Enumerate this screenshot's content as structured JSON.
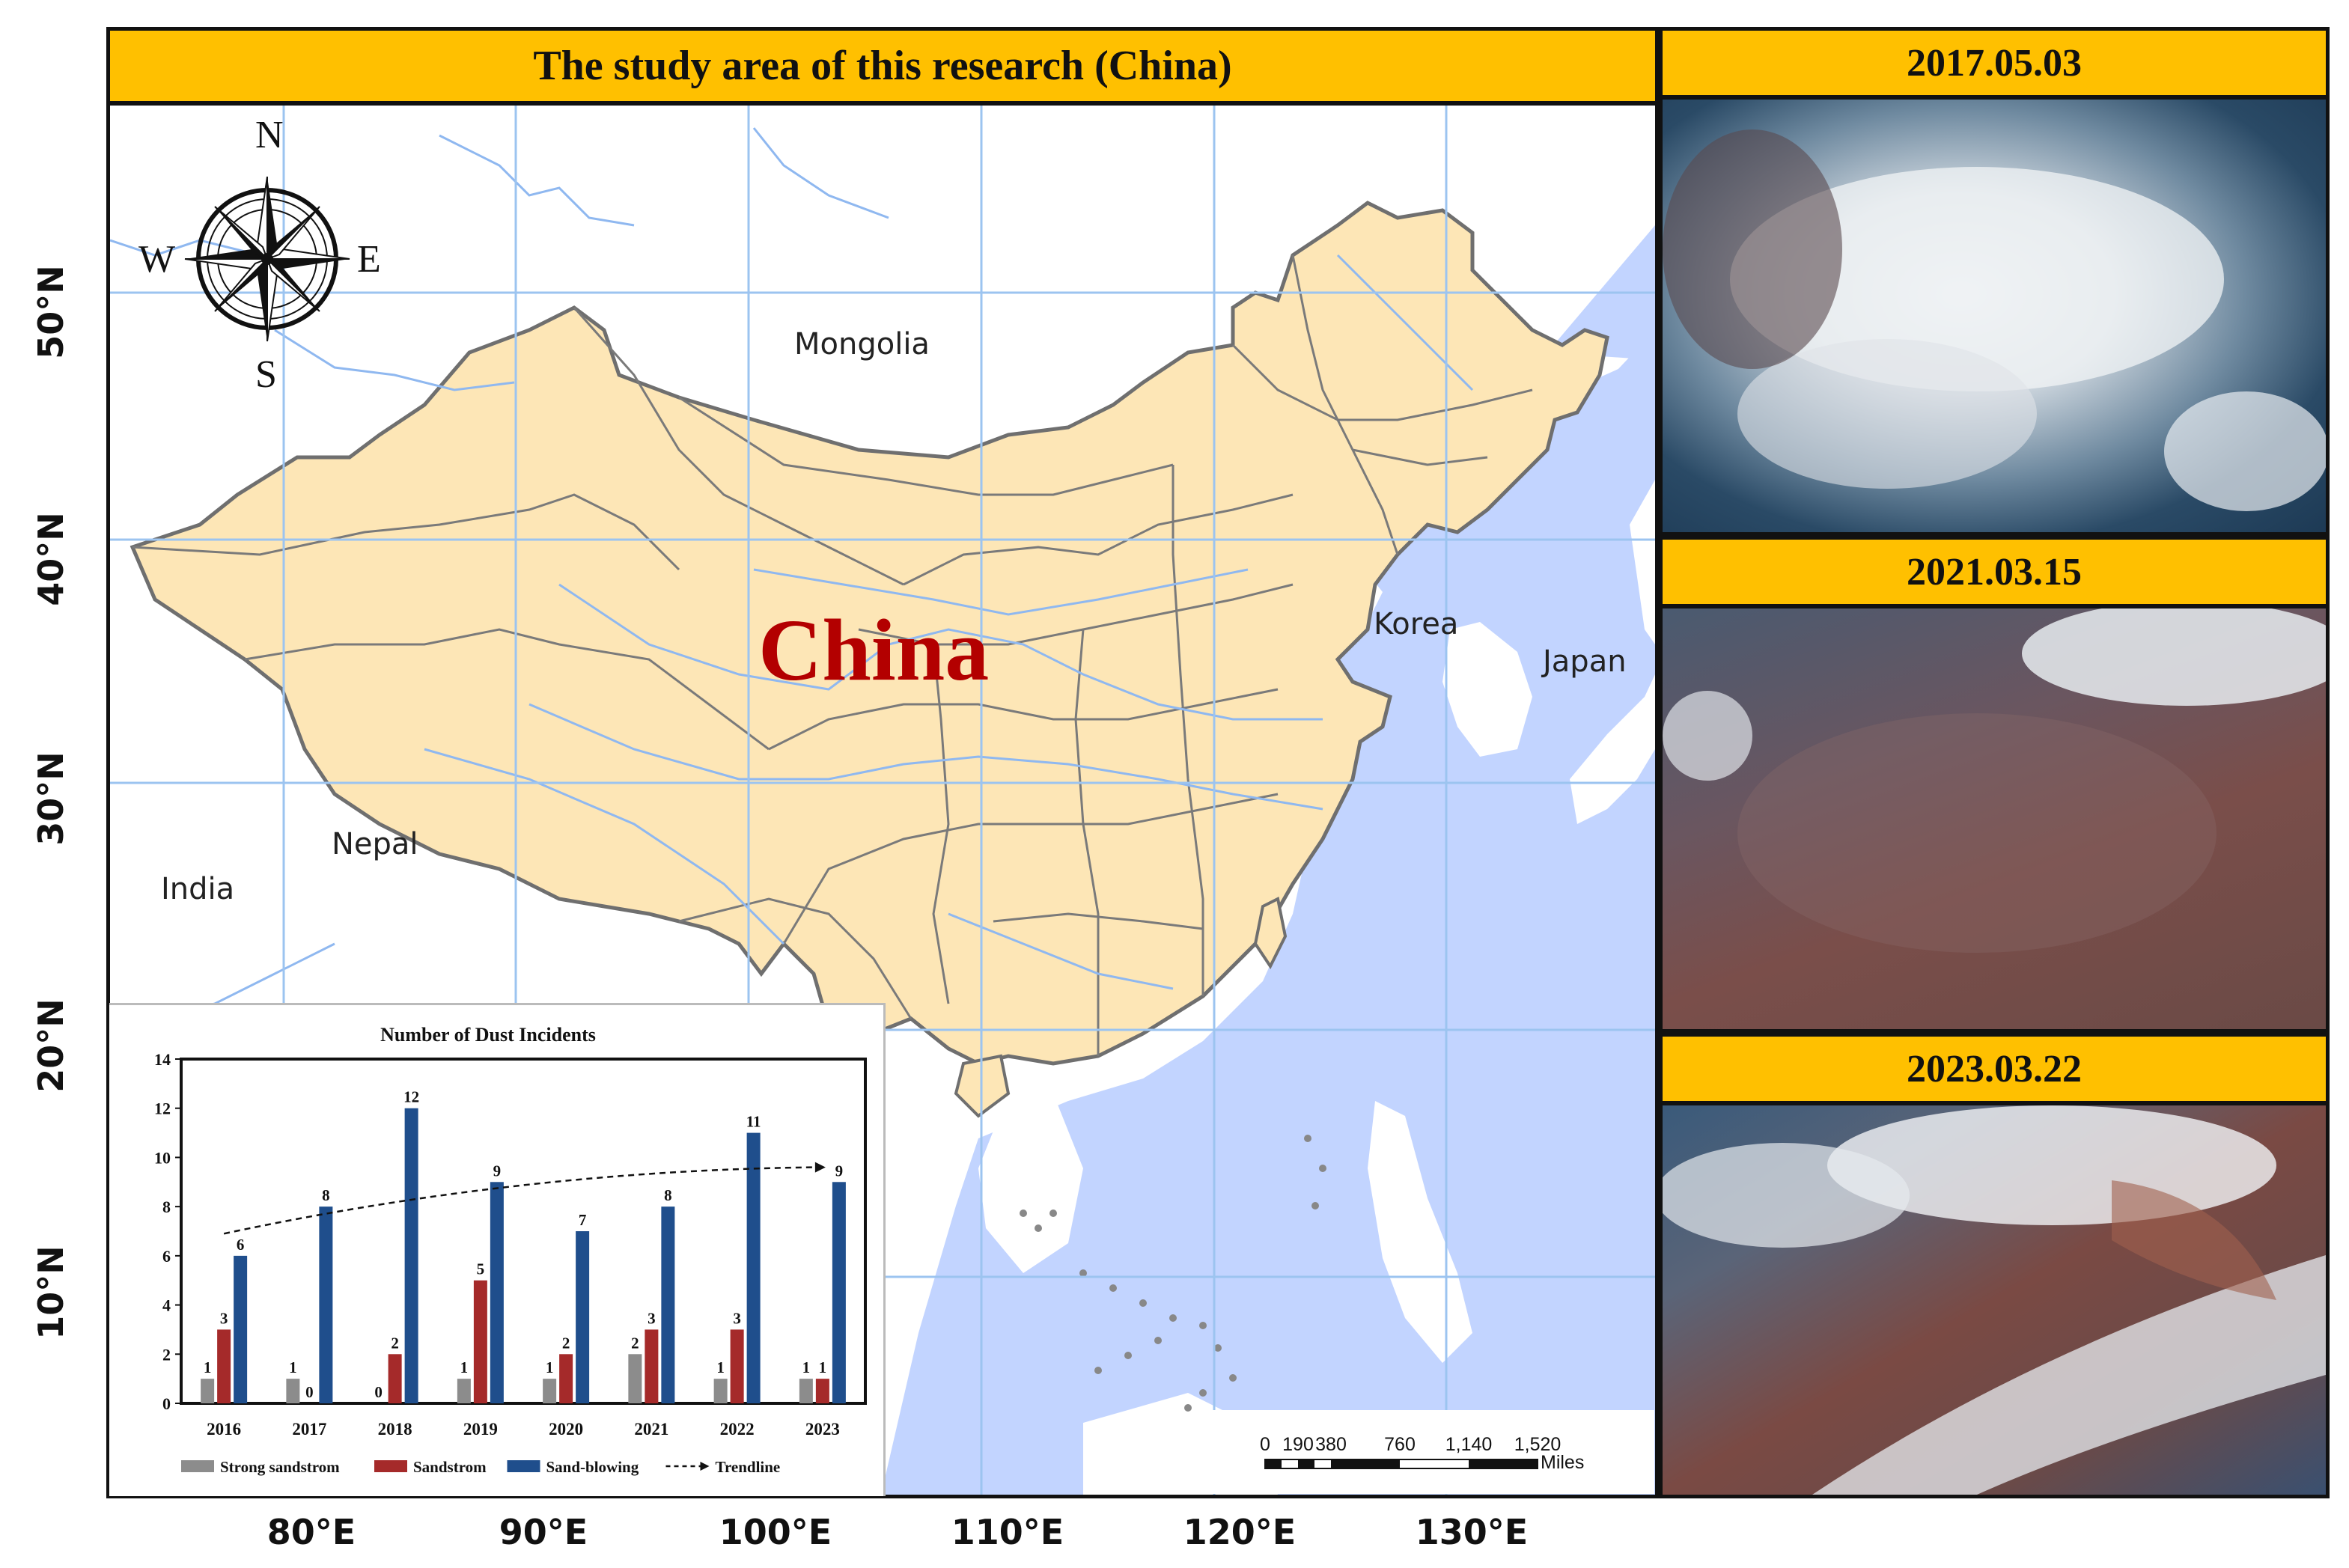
{
  "main_title": "The study area of this research (China)",
  "map": {
    "country_label": "China",
    "places": {
      "mongolia": "Mongolia",
      "korea": "Korea",
      "japan": "Japan",
      "nepal": "Nepal",
      "india": "India"
    },
    "compass": {
      "n": "N",
      "s": "S",
      "e": "E",
      "w": "W"
    },
    "lat_labels": [
      "50°N",
      "40°N",
      "30°N",
      "20°N",
      "10°N"
    ],
    "lon_labels": [
      "80°E",
      "90°E",
      "100°E",
      "110°E",
      "120°E",
      "130°E"
    ],
    "scale": {
      "ticks": [
        "0",
        "190",
        "380",
        "760",
        "1,140",
        "1,520"
      ],
      "unit": "Miles"
    },
    "colors": {
      "land_china": "#fde6b6",
      "water": "#c2d4ff",
      "rivers": "#8fb8f0",
      "grid": "#9cc4f0",
      "border": "#6f6f6f"
    }
  },
  "satellite_panels": [
    {
      "date": "2017.05.03"
    },
    {
      "date": "2021.03.15"
    },
    {
      "date": "2023.03.22"
    }
  ],
  "chart_data": {
    "type": "bar",
    "title": "Number of Dust Incidents",
    "categories": [
      "2016",
      "2017",
      "2018",
      "2019",
      "2020",
      "2021",
      "2022",
      "2023"
    ],
    "ylim": [
      0,
      14
    ],
    "yticks": [
      0,
      2,
      4,
      6,
      8,
      10,
      12,
      14
    ],
    "series": [
      {
        "name": "Strong sandstrom",
        "color": "#8c8c8c",
        "values": [
          1,
          1,
          0,
          1,
          1,
          2,
          1,
          1
        ]
      },
      {
        "name": "Sandstrom",
        "color": "#a52a2a",
        "values": [
          3,
          0,
          2,
          5,
          2,
          3,
          3,
          1
        ]
      },
      {
        "name": "Sand-blowing",
        "color": "#1f4e8c",
        "values": [
          6,
          8,
          12,
          9,
          7,
          8,
          11,
          9
        ]
      }
    ],
    "trendline": {
      "name": "Trendline",
      "style": "dashed",
      "from_value": 6.9,
      "to_value": 9.6
    },
    "grid": false,
    "legend_position": "bottom"
  }
}
